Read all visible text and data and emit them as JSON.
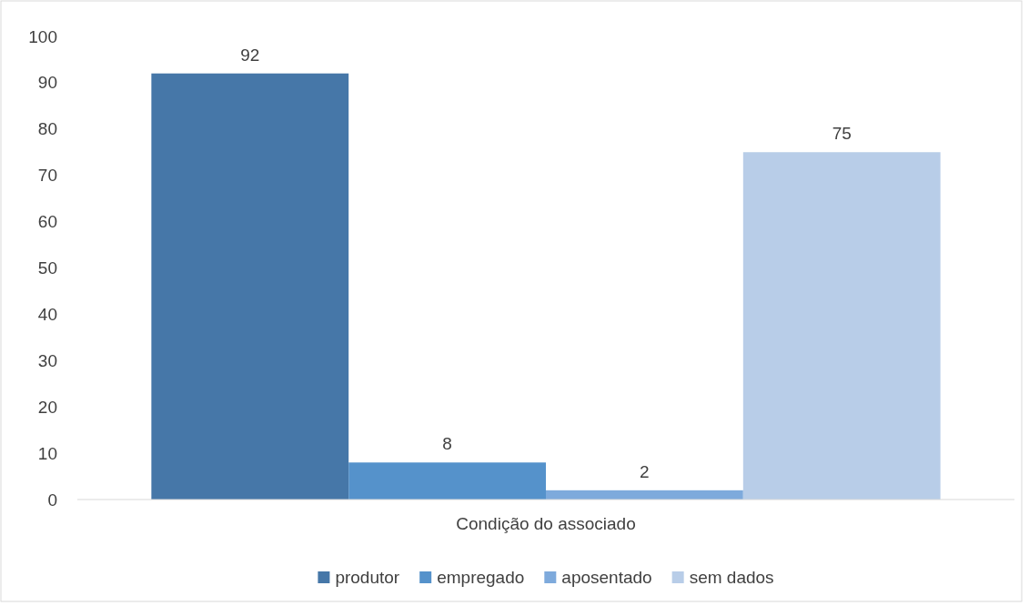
{
  "chart_data": {
    "type": "bar",
    "categories": [
      "Condição do associado"
    ],
    "series": [
      {
        "name": "produtor",
        "color": "#4677a8",
        "values": [
          92
        ]
      },
      {
        "name": "empregado",
        "color": "#5592cb",
        "values": [
          8
        ]
      },
      {
        "name": "aposentado",
        "color": "#7eaadc",
        "values": [
          2
        ]
      },
      {
        "name": "sem dados",
        "color": "#b8cde8",
        "values": [
          75
        ]
      }
    ],
    "ylim": [
      0,
      100
    ],
    "yticks": [
      0,
      10,
      20,
      30,
      40,
      50,
      60,
      70,
      80,
      90,
      100
    ],
    "grid": false,
    "data_labels": true,
    "legend": "bottom"
  }
}
